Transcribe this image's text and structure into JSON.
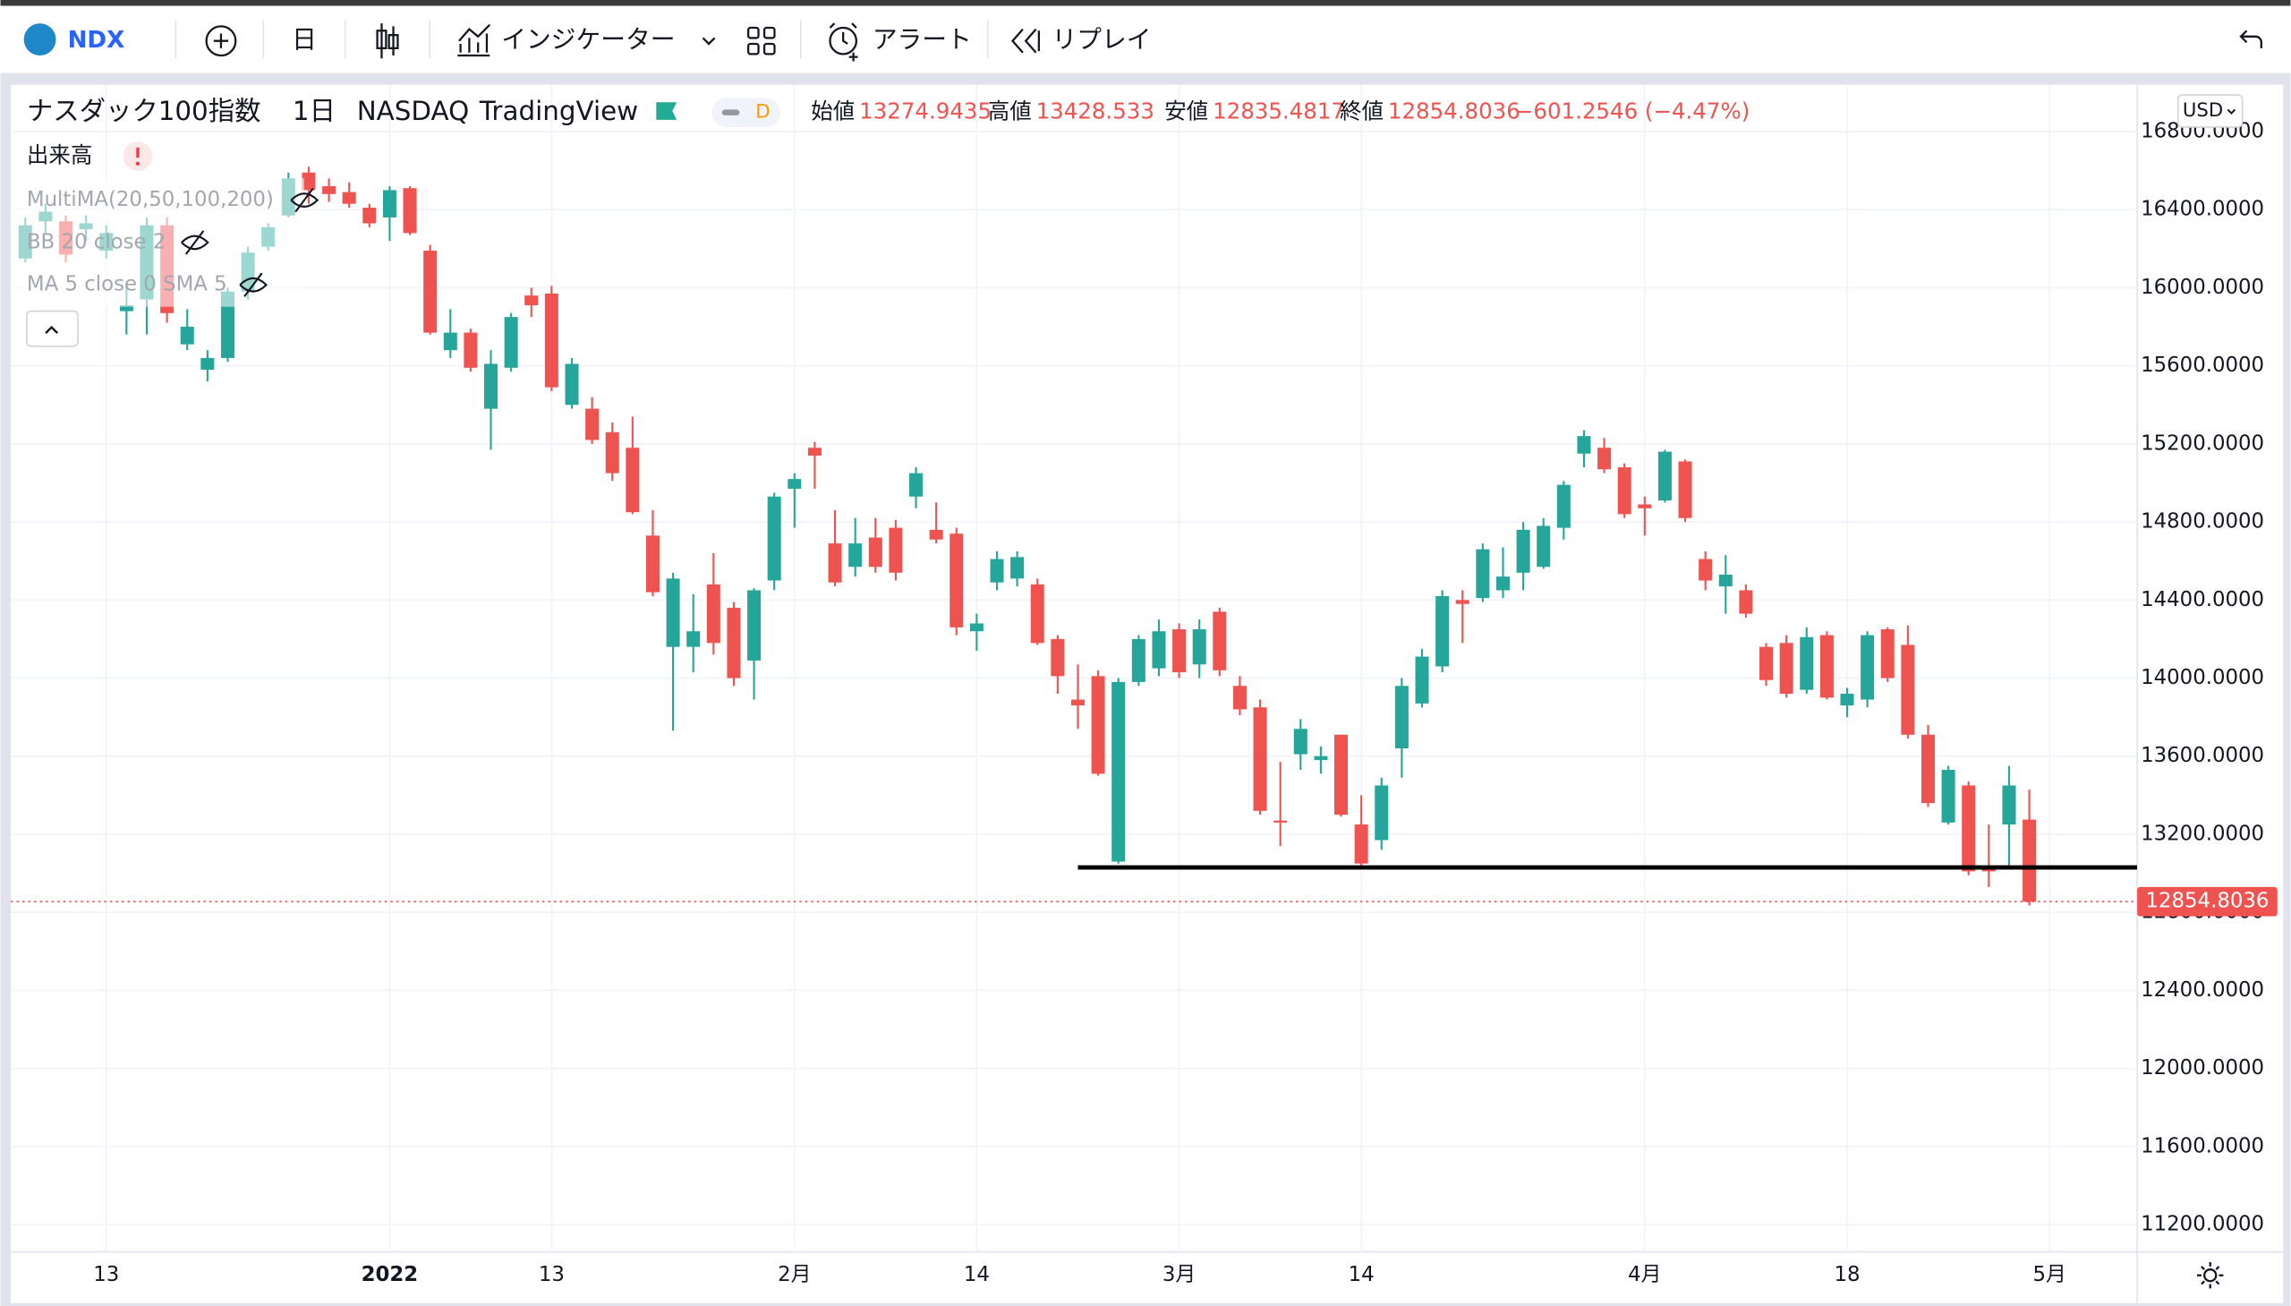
{
  "toolbar": {
    "symbol": "NDX",
    "interval": "日",
    "indicators": "インジケーター",
    "alert": "アラート",
    "replay": "リプレイ"
  },
  "legend": {
    "name": "ナスダック100指数",
    "interval": "1日",
    "exchange": "NASDAQ",
    "source": "TradingView",
    "badge": "D",
    "open_label": "始値",
    "high_label": "高値",
    "low_label": "安値",
    "close_label": "終値",
    "change": "−601.2546 (−4.47%)"
  },
  "indicators": [
    "出来高",
    "MultiMA(20,50,100,200)",
    "BB 20 close 2",
    "MA 5 close 0 SMA 5"
  ],
  "currency": "USD",
  "chart_data": {
    "type": "candlestick",
    "up_color": "#26a69a",
    "down_color": "#ef5350",
    "grid": true,
    "ylim": [
      11060,
      17040
    ],
    "yticks": [
      {
        "value": 11200,
        "label": "11200.0000"
      },
      {
        "value": 11600,
        "label": "11600.0000"
      },
      {
        "value": 12000,
        "label": "12000.0000"
      },
      {
        "value": 12400,
        "label": "12400.0000"
      },
      {
        "value": 12800,
        "label": "12800.0000"
      },
      {
        "value": 13200,
        "label": "13200.0000"
      },
      {
        "value": 13600,
        "label": "13600.0000"
      },
      {
        "value": 14000,
        "label": "14000.0000"
      },
      {
        "value": 14400,
        "label": "14400.0000"
      },
      {
        "value": 14800,
        "label": "14800.0000"
      },
      {
        "value": 15200,
        "label": "15200.0000"
      },
      {
        "value": 15600,
        "label": "15600.0000"
      },
      {
        "value": 16000,
        "label": "16000.0000"
      },
      {
        "value": 16400,
        "label": "16400.0000"
      },
      {
        "value": 16800,
        "label": "16800.0000"
      }
    ],
    "xticks": [
      {
        "value": 4,
        "label": "13"
      },
      {
        "value": 18,
        "label": "2022",
        "bold": true
      },
      {
        "value": 26,
        "label": "13"
      },
      {
        "value": 38,
        "label": "2月"
      },
      {
        "value": 47,
        "label": "14"
      },
      {
        "value": 57,
        "label": "3月"
      },
      {
        "value": 66,
        "label": "14"
      },
      {
        "value": 80,
        "label": "4月"
      },
      {
        "value": 90,
        "label": "18"
      },
      {
        "value": 100,
        "label": "5月"
      }
    ],
    "hline": {
      "value": 13030,
      "from": 52
    },
    "candles": [
      [
        16150,
        16360,
        16130,
        16320
      ],
      [
        16340,
        16430,
        16280,
        16390
      ],
      [
        16340,
        16370,
        16130,
        16170
      ],
      [
        16300,
        16370,
        16240,
        16330
      ],
      [
        16190,
        16320,
        16150,
        16280
      ],
      [
        15880,
        16020,
        15760,
        15910
      ],
      [
        15940,
        16360,
        15760,
        16320
      ],
      [
        16320,
        16360,
        15820,
        15870
      ],
      [
        15710,
        15890,
        15680,
        15800
      ],
      [
        15580,
        15680,
        15520,
        15640
      ],
      [
        15640,
        16000,
        15620,
        15980
      ],
      [
        15980,
        16210,
        15940,
        16180
      ],
      [
        16210,
        16330,
        16190,
        16310
      ],
      [
        16370,
        16590,
        16360,
        16560
      ],
      [
        16590,
        16620,
        16430,
        16500
      ],
      [
        16520,
        16560,
        16440,
        16480
      ],
      [
        16490,
        16540,
        16410,
        16430
      ],
      [
        16410,
        16430,
        16310,
        16330
      ],
      [
        16360,
        16520,
        16240,
        16500
      ],
      [
        16510,
        16520,
        16270,
        16280
      ],
      [
        16190,
        16220,
        15760,
        15770
      ],
      [
        15680,
        15890,
        15640,
        15770
      ],
      [
        15770,
        15790,
        15570,
        15590
      ],
      [
        15380,
        15680,
        15170,
        15610
      ],
      [
        15590,
        15870,
        15570,
        15850
      ],
      [
        15960,
        16000,
        15850,
        15910
      ],
      [
        15970,
        16010,
        15470,
        15490
      ],
      [
        15400,
        15640,
        15380,
        15610
      ],
      [
        15380,
        15440,
        15200,
        15220
      ],
      [
        15260,
        15310,
        15010,
        15050
      ],
      [
        15180,
        15340,
        14840,
        14850
      ],
      [
        14730,
        14860,
        14420,
        14440
      ],
      [
        14160,
        14540,
        13730,
        14510
      ],
      [
        14160,
        14430,
        14030,
        14240
      ],
      [
        14480,
        14640,
        14120,
        14180
      ],
      [
        14360,
        14390,
        13960,
        14000
      ],
      [
        14090,
        14460,
        13890,
        14450
      ],
      [
        14500,
        14950,
        14450,
        14930
      ],
      [
        14970,
        15050,
        14770,
        15020
      ],
      [
        15180,
        15210,
        14970,
        15140
      ],
      [
        14690,
        14860,
        14470,
        14490
      ],
      [
        14570,
        14820,
        14520,
        14690
      ],
      [
        14720,
        14820,
        14540,
        14570
      ],
      [
        14770,
        14810,
        14500,
        14540
      ],
      [
        14930,
        15080,
        14870,
        15050
      ],
      [
        14760,
        14900,
        14690,
        14710
      ],
      [
        14740,
        14770,
        14220,
        14260
      ],
      [
        14240,
        14330,
        14140,
        14280
      ],
      [
        14490,
        14650,
        14450,
        14610
      ],
      [
        14510,
        14650,
        14470,
        14620
      ],
      [
        14480,
        14510,
        14170,
        14180
      ],
      [
        14200,
        14220,
        13920,
        14010
      ],
      [
        13890,
        14070,
        13740,
        13860
      ],
      [
        14010,
        14040,
        13500,
        13510
      ],
      [
        13060,
        14000,
        13050,
        13980
      ],
      [
        13980,
        14220,
        13960,
        14200
      ],
      [
        14050,
        14300,
        14010,
        14240
      ],
      [
        14250,
        14280,
        14000,
        14030
      ],
      [
        14070,
        14300,
        14000,
        14250
      ],
      [
        14340,
        14360,
        14010,
        14040
      ],
      [
        13960,
        14010,
        13810,
        13840
      ],
      [
        13850,
        13890,
        13300,
        13320
      ],
      [
        13270,
        13570,
        13140,
        13260
      ],
      [
        13610,
        13790,
        13530,
        13740
      ],
      [
        13580,
        13650,
        13510,
        13600
      ],
      [
        13710,
        13710,
        13290,
        13300
      ],
      [
        13250,
        13400,
        13030,
        13050
      ],
      [
        13170,
        13490,
        13120,
        13450
      ],
      [
        13640,
        14000,
        13490,
        13960
      ],
      [
        13870,
        14150,
        13850,
        14110
      ],
      [
        14060,
        14450,
        14030,
        14420
      ],
      [
        14400,
        14450,
        14180,
        14380
      ],
      [
        14410,
        14690,
        14390,
        14660
      ],
      [
        14450,
        14670,
        14410,
        14520
      ],
      [
        14540,
        14800,
        14450,
        14760
      ],
      [
        14570,
        14820,
        14560,
        14780
      ],
      [
        14770,
        15010,
        14710,
        14990
      ],
      [
        15150,
        15270,
        15080,
        15240
      ],
      [
        15180,
        15230,
        15050,
        15070
      ],
      [
        15080,
        15100,
        14820,
        14840
      ],
      [
        14890,
        14930,
        14730,
        14870
      ],
      [
        14910,
        15170,
        14900,
        15160
      ],
      [
        15110,
        15120,
        14800,
        14820
      ],
      [
        14610,
        14650,
        14450,
        14500
      ],
      [
        14470,
        14630,
        14330,
        14530
      ],
      [
        14450,
        14480,
        14310,
        14330
      ],
      [
        14160,
        14180,
        13960,
        13990
      ],
      [
        14180,
        14220,
        13900,
        13920
      ],
      [
        13940,
        14260,
        13920,
        14210
      ],
      [
        14220,
        14240,
        13890,
        13900
      ],
      [
        13860,
        13950,
        13800,
        13920
      ],
      [
        13890,
        14240,
        13850,
        14220
      ],
      [
        14250,
        14260,
        13980,
        14000
      ],
      [
        14170,
        14270,
        13690,
        13710
      ],
      [
        13710,
        13760,
        13340,
        13360
      ],
      [
        13260,
        13550,
        13250,
        13530
      ],
      [
        13450,
        13470,
        12990,
        13010
      ],
      [
        13020,
        13250,
        12930,
        13010
      ],
      [
        13250,
        13550,
        13020,
        13450
      ],
      [
        13274.9435,
        13428.533,
        12835.4817,
        12854.8036
      ]
    ]
  }
}
